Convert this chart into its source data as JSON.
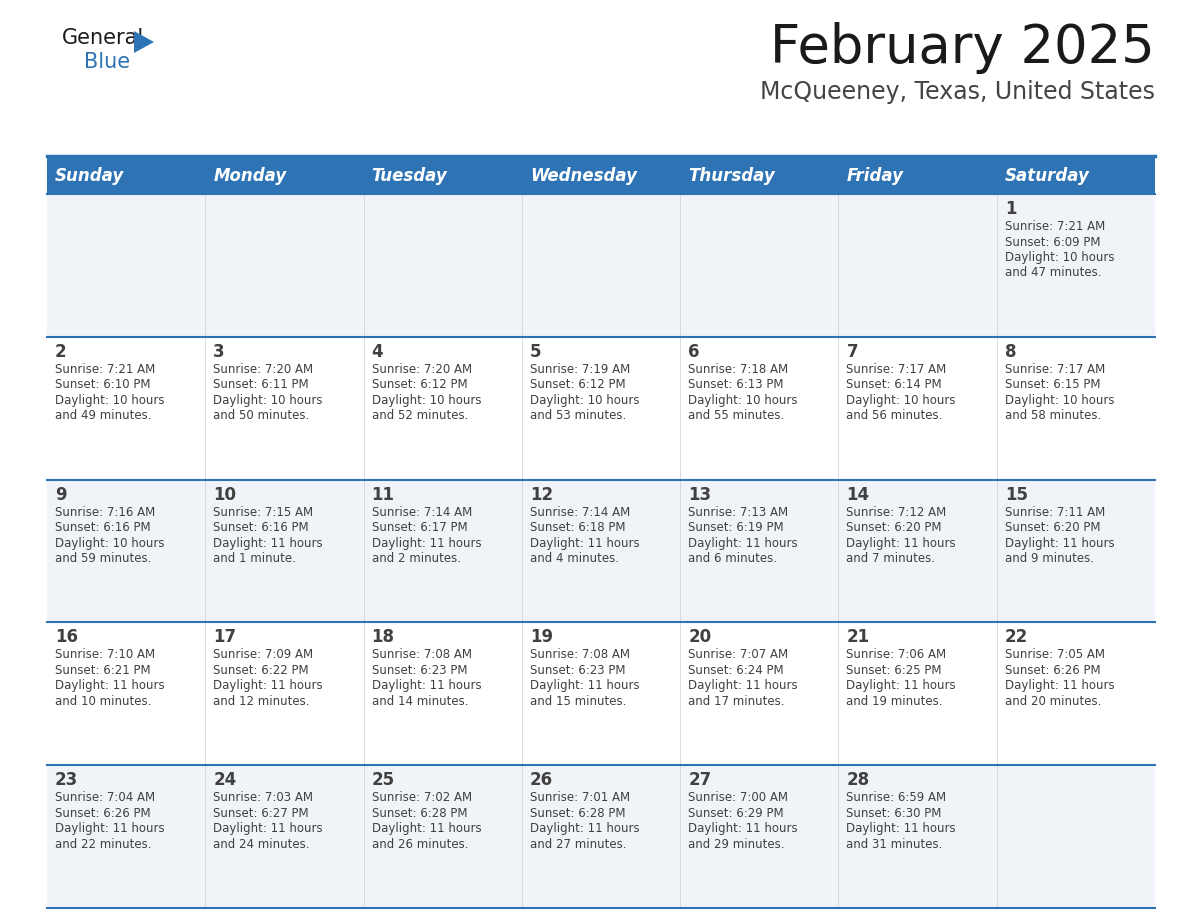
{
  "title": "February 2025",
  "subtitle": "McQueeney, Texas, United States",
  "header_bg": "#2E74B5",
  "header_text_color": "#FFFFFF",
  "divider_color": "#2E74B5",
  "text_color": "#404040",
  "cell_bg_light": "#F0F4F8",
  "cell_bg_white": "#FFFFFF",
  "days_of_week": [
    "Sunday",
    "Monday",
    "Tuesday",
    "Wednesday",
    "Thursday",
    "Friday",
    "Saturday"
  ],
  "calendar_data": [
    [
      null,
      null,
      null,
      null,
      null,
      null,
      {
        "day": "1",
        "sunrise": "7:21 AM",
        "sunset": "6:09 PM",
        "daylight_h": "10 hours",
        "daylight_m": "47 minutes."
      }
    ],
    [
      {
        "day": "2",
        "sunrise": "7:21 AM",
        "sunset": "6:10 PM",
        "daylight_h": "10 hours",
        "daylight_m": "49 minutes."
      },
      {
        "day": "3",
        "sunrise": "7:20 AM",
        "sunset": "6:11 PM",
        "daylight_h": "10 hours",
        "daylight_m": "50 minutes."
      },
      {
        "day": "4",
        "sunrise": "7:20 AM",
        "sunset": "6:12 PM",
        "daylight_h": "10 hours",
        "daylight_m": "52 minutes."
      },
      {
        "day": "5",
        "sunrise": "7:19 AM",
        "sunset": "6:12 PM",
        "daylight_h": "10 hours",
        "daylight_m": "53 minutes."
      },
      {
        "day": "6",
        "sunrise": "7:18 AM",
        "sunset": "6:13 PM",
        "daylight_h": "10 hours",
        "daylight_m": "55 minutes."
      },
      {
        "day": "7",
        "sunrise": "7:17 AM",
        "sunset": "6:14 PM",
        "daylight_h": "10 hours",
        "daylight_m": "56 minutes."
      },
      {
        "day": "8",
        "sunrise": "7:17 AM",
        "sunset": "6:15 PM",
        "daylight_h": "10 hours",
        "daylight_m": "58 minutes."
      }
    ],
    [
      {
        "day": "9",
        "sunrise": "7:16 AM",
        "sunset": "6:16 PM",
        "daylight_h": "10 hours",
        "daylight_m": "59 minutes."
      },
      {
        "day": "10",
        "sunrise": "7:15 AM",
        "sunset": "6:16 PM",
        "daylight_h": "11 hours",
        "daylight_m": "1 minute."
      },
      {
        "day": "11",
        "sunrise": "7:14 AM",
        "sunset": "6:17 PM",
        "daylight_h": "11 hours",
        "daylight_m": "2 minutes."
      },
      {
        "day": "12",
        "sunrise": "7:14 AM",
        "sunset": "6:18 PM",
        "daylight_h": "11 hours",
        "daylight_m": "4 minutes."
      },
      {
        "day": "13",
        "sunrise": "7:13 AM",
        "sunset": "6:19 PM",
        "daylight_h": "11 hours",
        "daylight_m": "6 minutes."
      },
      {
        "day": "14",
        "sunrise": "7:12 AM",
        "sunset": "6:20 PM",
        "daylight_h": "11 hours",
        "daylight_m": "7 minutes."
      },
      {
        "day": "15",
        "sunrise": "7:11 AM",
        "sunset": "6:20 PM",
        "daylight_h": "11 hours",
        "daylight_m": "9 minutes."
      }
    ],
    [
      {
        "day": "16",
        "sunrise": "7:10 AM",
        "sunset": "6:21 PM",
        "daylight_h": "11 hours",
        "daylight_m": "10 minutes."
      },
      {
        "day": "17",
        "sunrise": "7:09 AM",
        "sunset": "6:22 PM",
        "daylight_h": "11 hours",
        "daylight_m": "12 minutes."
      },
      {
        "day": "18",
        "sunrise": "7:08 AM",
        "sunset": "6:23 PM",
        "daylight_h": "11 hours",
        "daylight_m": "14 minutes."
      },
      {
        "day": "19",
        "sunrise": "7:08 AM",
        "sunset": "6:23 PM",
        "daylight_h": "11 hours",
        "daylight_m": "15 minutes."
      },
      {
        "day": "20",
        "sunrise": "7:07 AM",
        "sunset": "6:24 PM",
        "daylight_h": "11 hours",
        "daylight_m": "17 minutes."
      },
      {
        "day": "21",
        "sunrise": "7:06 AM",
        "sunset": "6:25 PM",
        "daylight_h": "11 hours",
        "daylight_m": "19 minutes."
      },
      {
        "day": "22",
        "sunrise": "7:05 AM",
        "sunset": "6:26 PM",
        "daylight_h": "11 hours",
        "daylight_m": "20 minutes."
      }
    ],
    [
      {
        "day": "23",
        "sunrise": "7:04 AM",
        "sunset": "6:26 PM",
        "daylight_h": "11 hours",
        "daylight_m": "22 minutes."
      },
      {
        "day": "24",
        "sunrise": "7:03 AM",
        "sunset": "6:27 PM",
        "daylight_h": "11 hours",
        "daylight_m": "24 minutes."
      },
      {
        "day": "25",
        "sunrise": "7:02 AM",
        "sunset": "6:28 PM",
        "daylight_h": "11 hours",
        "daylight_m": "26 minutes."
      },
      {
        "day": "26",
        "sunrise": "7:01 AM",
        "sunset": "6:28 PM",
        "daylight_h": "11 hours",
        "daylight_m": "27 minutes."
      },
      {
        "day": "27",
        "sunrise": "7:00 AM",
        "sunset": "6:29 PM",
        "daylight_h": "11 hours",
        "daylight_m": "29 minutes."
      },
      {
        "day": "28",
        "sunrise": "6:59 AM",
        "sunset": "6:30 PM",
        "daylight_h": "11 hours",
        "daylight_m": "31 minutes."
      },
      null
    ]
  ],
  "title_fontsize": 38,
  "subtitle_fontsize": 17,
  "header_fontsize": 12,
  "day_num_fontsize": 12,
  "cell_text_fontsize": 8.5
}
